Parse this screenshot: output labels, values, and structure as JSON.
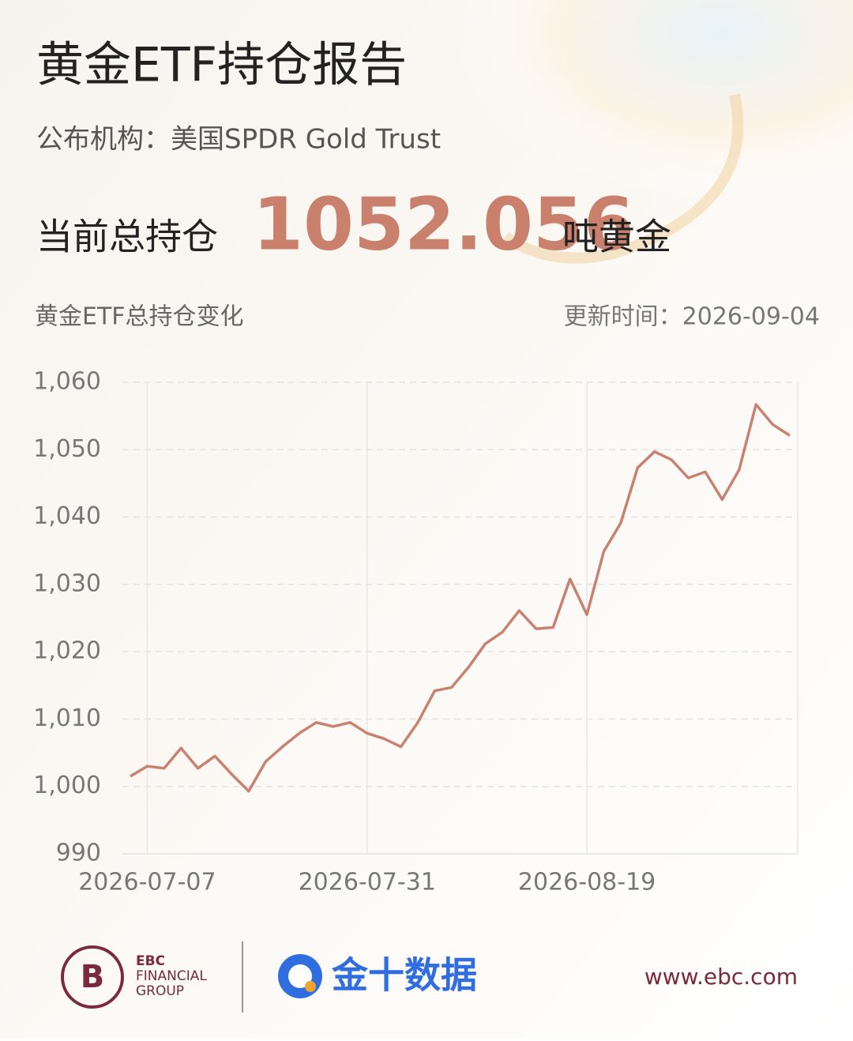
{
  "header": {
    "title": "黄金ETF持仓报告",
    "publisher": "公布机构：美国SPDR Gold Trust",
    "total_label": "当前总持仓",
    "total_value": "1052.056",
    "total_unit": "吨黄金",
    "update_time": "更新时间：2026-09-04"
  },
  "chart_data": {
    "type": "line",
    "title": "黄金ETF总持仓变化",
    "categories": [
      null,
      "2026-07-07",
      null,
      null,
      null,
      null,
      null,
      null,
      null,
      null,
      null,
      null,
      null,
      null,
      "2026-07-31",
      null,
      null,
      null,
      null,
      null,
      null,
      null,
      null,
      null,
      null,
      null,
      null,
      "2026-08-19",
      null,
      null,
      null,
      null,
      null,
      null,
      null,
      null,
      null,
      null,
      null,
      null
    ],
    "series": [
      {
        "name": "黄金ETF总持仓",
        "color": "#c9826f",
        "values": [
          1001.5,
          1003.0,
          1002.7,
          1005.7,
          1002.7,
          1004.5,
          1001.8,
          999.3,
          1003.7,
          1005.9,
          1007.9,
          1009.5,
          1008.9,
          1009.5,
          1007.9,
          1007.1,
          1005.9,
          1009.5,
          1014.2,
          1014.7,
          1017.7,
          1021.2,
          1022.9,
          1026.1,
          1023.4,
          1023.6,
          1030.8,
          1025.5,
          1034.9,
          1039.1,
          1047.3,
          1049.7,
          1048.5,
          1045.8,
          1046.7,
          1042.6,
          1047.0,
          1056.7,
          1053.7,
          1052.1
        ]
      }
    ],
    "ylim": [
      990,
      1060
    ],
    "yticks": [
      990,
      {
        "value": 1000,
        "label": "1,000"
      },
      {
        "value": 1010,
        "label": "1,010"
      },
      {
        "value": 1020,
        "label": "1,020"
      },
      {
        "value": 1030,
        "label": "1,030"
      },
      {
        "value": 1040,
        "label": "1,040"
      },
      {
        "value": 1050,
        "label": "1,050"
      },
      {
        "value": 1060,
        "label": "1,060"
      }
    ],
    "grid": true
  },
  "footer": {
    "ebc_line1": "EBC",
    "ebc_line2": "FINANCIAL",
    "ebc_line3": "GROUP",
    "jin10": "金十数据",
    "website": "www.ebc.com"
  }
}
